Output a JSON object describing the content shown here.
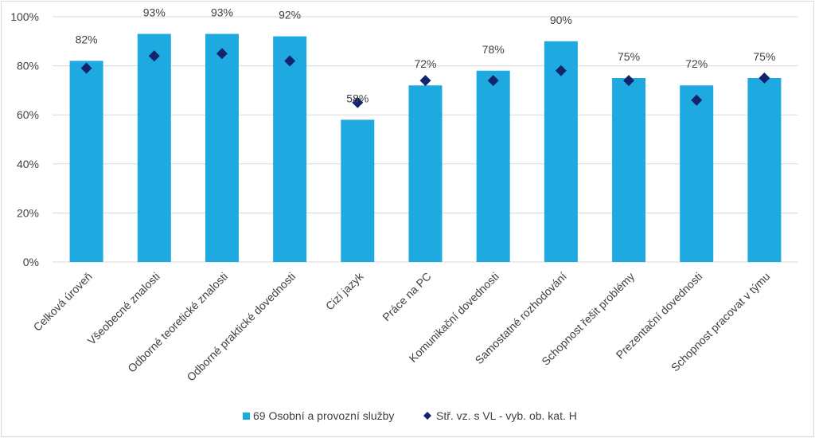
{
  "chart_data": {
    "type": "bar",
    "categories": [
      "Celková úroveň",
      "Všeobecné znalosti",
      "Odborné teoretické znalosti",
      "Odborné praktické dovednosti",
      "Cizí jazyk",
      "Práce na PC",
      "Komunikační dovednosti",
      "Samostatné rozhodování",
      "Schopnost řešit problémy",
      "Prezentační dovednosti",
      "Schopnost pracovat v týmu"
    ],
    "series": [
      {
        "name": "69 Osobní a provozní služby",
        "kind": "bar",
        "color": "#1fa9e1",
        "values": [
          82,
          93,
          93,
          92,
          58,
          72,
          78,
          90,
          75,
          72,
          75
        ],
        "labels": [
          "82%",
          "93%",
          "93%",
          "92%",
          "58%",
          "72%",
          "78%",
          "90%",
          "75%",
          "72%",
          "75%"
        ]
      },
      {
        "name": "Stř. vz. s VL - vyb. ob. kat. H",
        "kind": "marker",
        "marker": "diamond",
        "color": "#12246b",
        "values": [
          79,
          84,
          85,
          82,
          65,
          74,
          74,
          78,
          74,
          66,
          75
        ]
      }
    ],
    "y_ticks": [
      "0%",
      "20%",
      "40%",
      "60%",
      "80%",
      "100%"
    ],
    "ylim": [
      0,
      100
    ],
    "grid": true,
    "legend_position": "bottom"
  }
}
